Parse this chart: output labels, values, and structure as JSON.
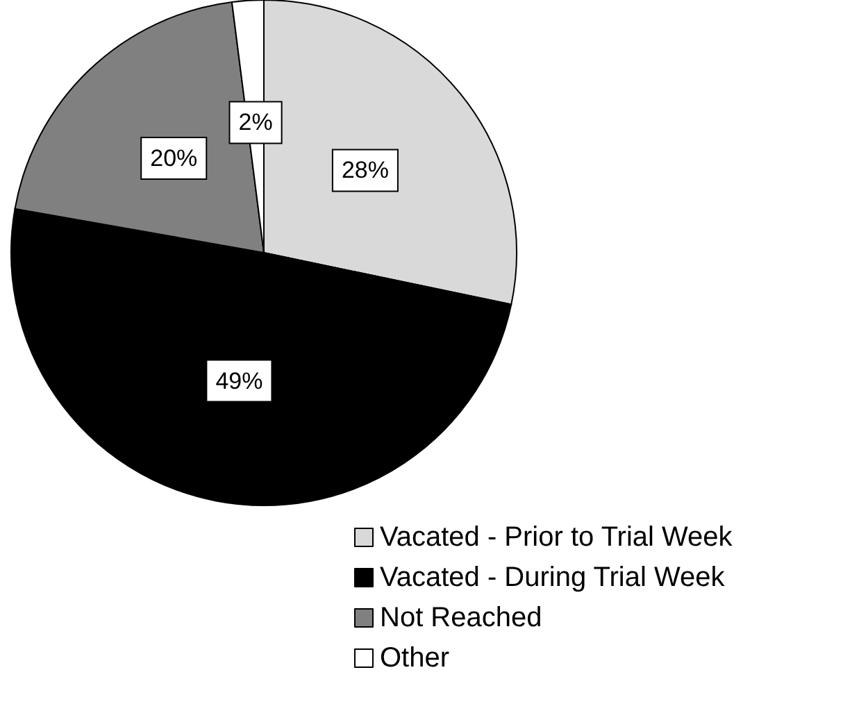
{
  "chart_data": {
    "type": "pie",
    "categories": [
      "Vacated - Prior to Trial Week",
      "Vacated - During Trial Week",
      "Not Reached",
      "Other"
    ],
    "values": [
      28,
      49,
      20,
      2
    ],
    "colors": [
      "#d9d9d9",
      "#000000",
      "#808080",
      "#ffffff"
    ],
    "value_labels": [
      "28%",
      "49%",
      "20%",
      "2%"
    ],
    "legend": "bottom right"
  }
}
